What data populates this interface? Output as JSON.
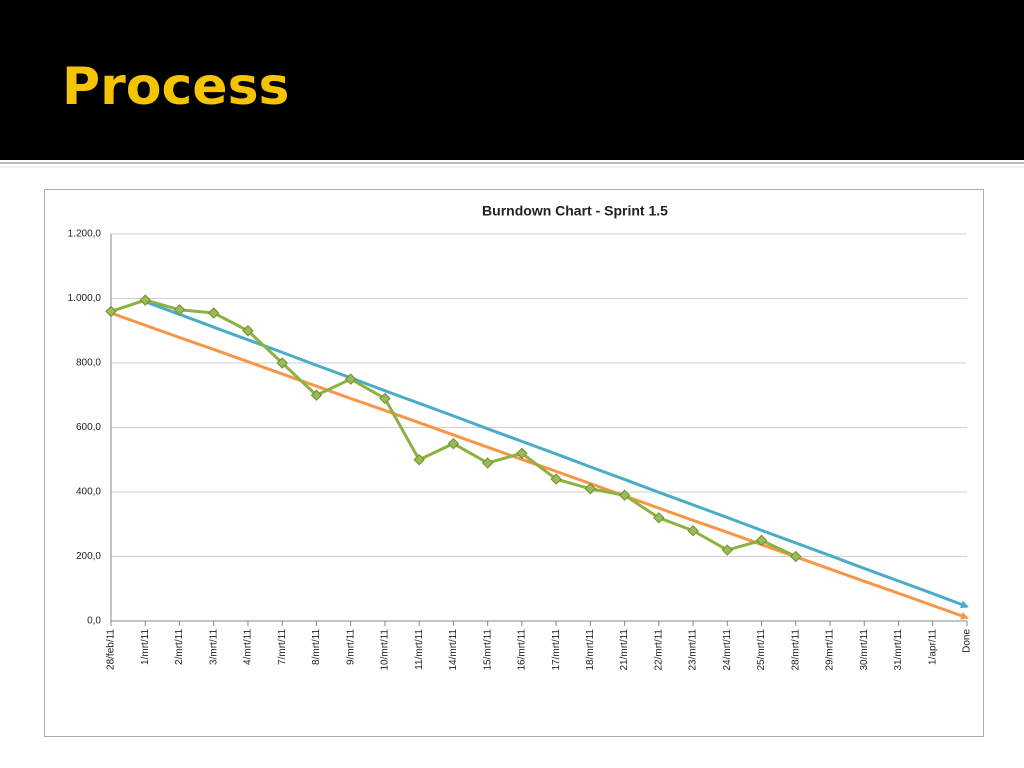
{
  "slide": {
    "title": "Process"
  },
  "chart_data": {
    "type": "line",
    "title": "Burndown Chart - Sprint 1.5",
    "categories": [
      "28/feb/11",
      "1/mrt/11",
      "2/mrt/11",
      "3/mrt/11",
      "4/mrt/11",
      "7/mrt/11",
      "8/mrt/11",
      "9/mrt/11",
      "10/mrt/11",
      "11/mrt/11",
      "14/mrt/11",
      "15/mrt/11",
      "16/mrt/11",
      "17/mrt/11",
      "18/mrt/11",
      "21/mrt/11",
      "22/mrt/11",
      "23/mrt/11",
      "24/mrt/11",
      "25/mrt/11",
      "28/mrt/11",
      "29/mrt/11",
      "30/mrt/11",
      "31/mrt/11",
      "1/apr/11",
      "Done"
    ],
    "series": [
      {
        "color": "#4bacc6",
        "arrow": true,
        "markers": false,
        "values": [
          null,
          990,
          951,
          911,
          872,
          833,
          793,
          754,
          714,
          675,
          636,
          596,
          557,
          518,
          478,
          439,
          399,
          360,
          321,
          281,
          242,
          203,
          163,
          124,
          85,
          45
        ]
      },
      {
        "color": "#f79646",
        "arrow": true,
        "markers": false,
        "values": [
          955,
          917,
          879,
          842,
          804,
          766,
          728,
          690,
          653,
          615,
          577,
          539,
          501,
          464,
          426,
          388,
          350,
          312,
          275,
          237,
          199,
          161,
          123,
          86,
          48,
          10
        ]
      },
      {
        "color": "#8db23f",
        "arrow": false,
        "markers": true,
        "values": [
          960,
          995,
          965,
          955,
          900,
          800,
          700,
          750,
          690,
          500,
          550,
          490,
          520,
          440,
          410,
          390,
          320,
          280,
          220,
          250,
          200,
          null,
          null,
          null,
          null,
          null
        ]
      }
    ],
    "ylim": [
      0,
      1200
    ],
    "yticks": [
      {
        "value": 0,
        "label": "0,0"
      },
      {
        "value": 200,
        "label": "200,0"
      },
      {
        "value": 400,
        "label": "400,0"
      },
      {
        "value": 600,
        "label": "600,0"
      },
      {
        "value": 800,
        "label": "800,0"
      },
      {
        "value": 1000,
        "label": "1.000,0"
      },
      {
        "value": 1200,
        "label": "1.200,0"
      }
    ],
    "grid": true
  }
}
